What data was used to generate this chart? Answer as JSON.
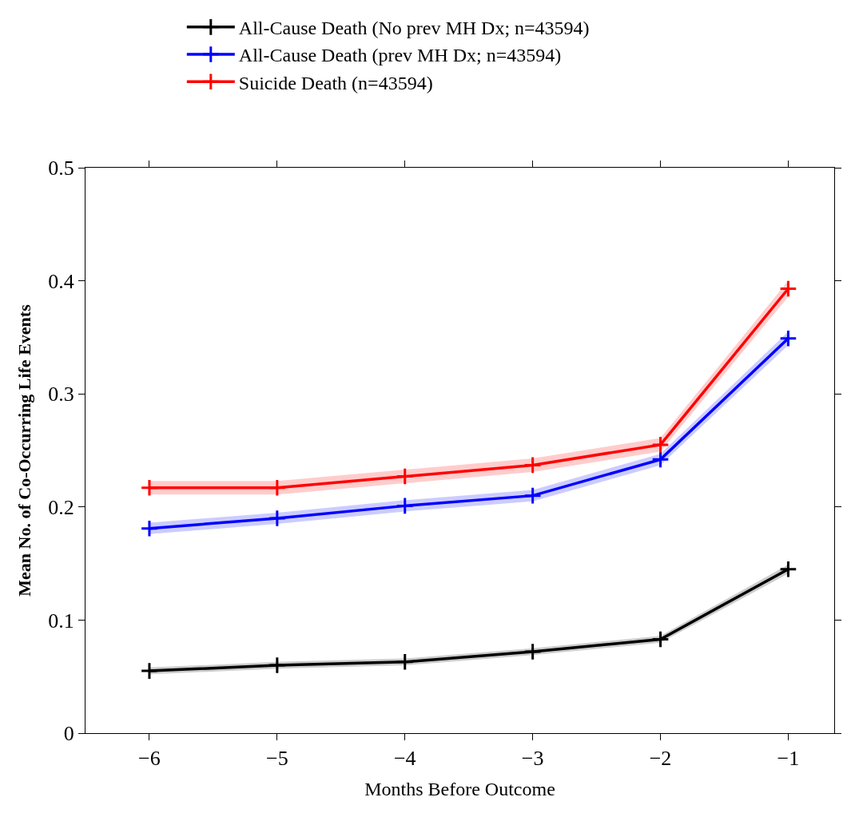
{
  "chart_data": {
    "type": "line",
    "xlabel": "Months Before Outcome",
    "ylabel": "Mean No. of Co-Occurring Life Events",
    "x": [
      -6,
      -5,
      -4,
      -3,
      -2,
      -1
    ],
    "series": [
      {
        "name": "All-Cause Death (No prev MH Dx; n=43594)",
        "color": "#000000",
        "values": [
          0.055,
          0.06,
          0.063,
          0.072,
          0.083,
          0.145
        ],
        "lower": [
          0.052,
          0.057,
          0.06,
          0.069,
          0.08,
          0.141
        ],
        "upper": [
          0.058,
          0.063,
          0.066,
          0.075,
          0.086,
          0.149
        ]
      },
      {
        "name": "All-Cause Death (prev MH Dx; n=43594)",
        "color": "#0000ff",
        "values": [
          0.181,
          0.19,
          0.201,
          0.21,
          0.242,
          0.349
        ],
        "lower": [
          0.176,
          0.185,
          0.196,
          0.205,
          0.237,
          0.343
        ],
        "upper": [
          0.186,
          0.195,
          0.206,
          0.215,
          0.247,
          0.355
        ]
      },
      {
        "name": "Suicide Death (n=43594)",
        "color": "#ff0000",
        "values": [
          0.217,
          0.217,
          0.227,
          0.237,
          0.255,
          0.393
        ],
        "lower": [
          0.211,
          0.211,
          0.221,
          0.231,
          0.249,
          0.386
        ],
        "upper": [
          0.223,
          0.223,
          0.233,
          0.243,
          0.261,
          0.4
        ]
      }
    ],
    "xlim": [
      -6.5,
      -0.64
    ],
    "xticks": [
      {
        "value": -6,
        "label": "−6"
      },
      {
        "value": -5,
        "label": "−5"
      },
      {
        "value": -4,
        "label": "−4"
      },
      {
        "value": -3,
        "label": "−3"
      },
      {
        "value": -2,
        "label": "−2"
      },
      {
        "value": -1,
        "label": "−1"
      }
    ],
    "ylim": [
      0,
      0.5
    ],
    "yticks": [
      0,
      0.1,
      0.2,
      0.3,
      0.4,
      0.5
    ],
    "legend": "top",
    "marker": "cross",
    "line_style": "solid"
  }
}
